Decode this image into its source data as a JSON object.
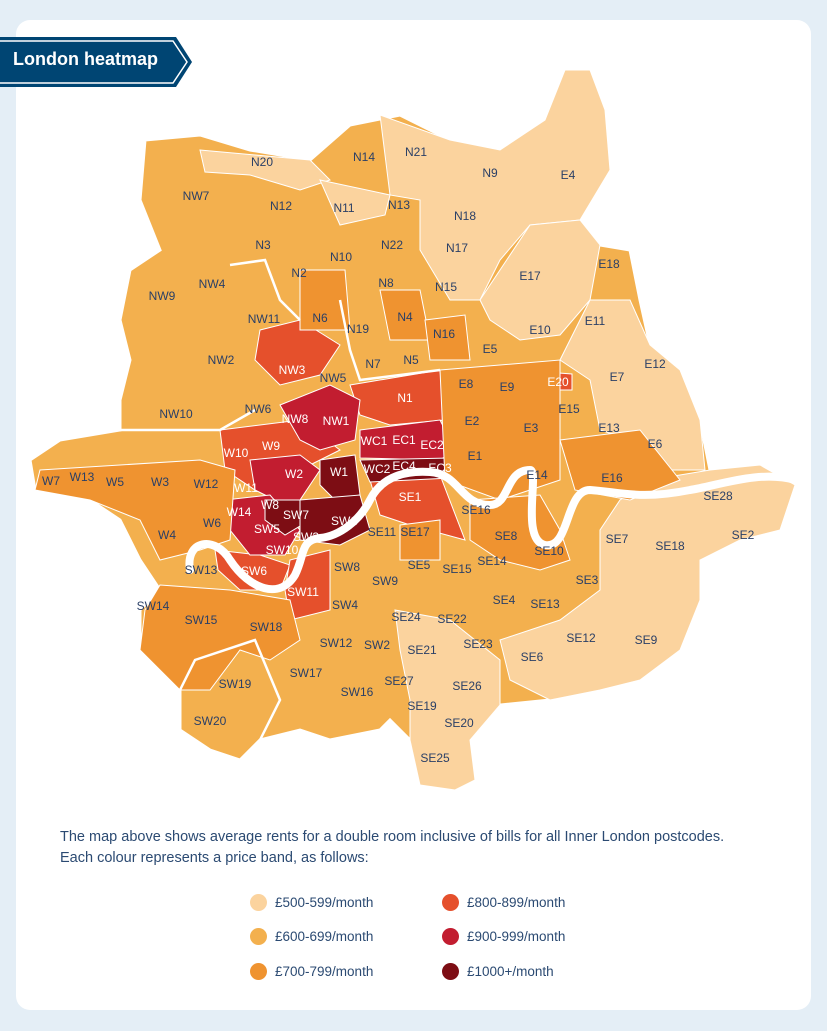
{
  "title": "London heatmap",
  "description": [
    "The map above shows average rents for a double room inclusive of bills for all Inner London postcodes.",
    "Each colour represents a price band, as follows:"
  ],
  "bands": [
    {
      "label": "£500-599/month",
      "color": "#fbd39e"
    },
    {
      "label": "£600-699/month",
      "color": "#f3b04e"
    },
    {
      "label": "£700-799/month",
      "color": "#ef9330"
    },
    {
      "label": "£800-899/month",
      "color": "#e5502c"
    },
    {
      "label": "£900-999/month",
      "color": "#c21d30"
    },
    {
      "label": "£1000+/month",
      "color": "#7d0d14"
    }
  ],
  "districts": [
    {
      "name": "N20",
      "band": 0
    },
    {
      "name": "N14",
      "band": 1
    },
    {
      "name": "N21",
      "band": 0
    },
    {
      "name": "N9",
      "band": 0
    },
    {
      "name": "E4",
      "band": 0
    },
    {
      "name": "NW7",
      "band": 1
    },
    {
      "name": "N12",
      "band": 1
    },
    {
      "name": "N11",
      "band": 0
    },
    {
      "name": "N13",
      "band": 0
    },
    {
      "name": "N18",
      "band": 0
    },
    {
      "name": "N3",
      "band": 1
    },
    {
      "name": "N22",
      "band": 1
    },
    {
      "name": "N17",
      "band": 0
    },
    {
      "name": "E17",
      "band": 0
    },
    {
      "name": "E18",
      "band": 1
    },
    {
      "name": "NW9",
      "band": 1
    },
    {
      "name": "NW4",
      "band": 1
    },
    {
      "name": "N2",
      "band": 1
    },
    {
      "name": "N10",
      "band": 1
    },
    {
      "name": "N8",
      "band": 1
    },
    {
      "name": "N15",
      "band": 1
    },
    {
      "name": "NW11",
      "band": 1
    },
    {
      "name": "N6",
      "band": 2
    },
    {
      "name": "N19",
      "band": 1
    },
    {
      "name": "N4",
      "band": 2
    },
    {
      "name": "N16",
      "band": 2
    },
    {
      "name": "E10",
      "band": 0
    },
    {
      "name": "E11",
      "band": 1
    },
    {
      "name": "NW2",
      "band": 1
    },
    {
      "name": "NW3",
      "band": 3
    },
    {
      "name": "N7",
      "band": 1
    },
    {
      "name": "N5",
      "band": 1
    },
    {
      "name": "E5",
      "band": 1
    },
    {
      "name": "E12",
      "band": 0
    },
    {
      "name": "NW5",
      "band": 1
    },
    {
      "name": "E20",
      "band": 3
    },
    {
      "name": "E7",
      "band": 0
    },
    {
      "name": "NW10",
      "band": 1
    },
    {
      "name": "NW6",
      "band": 2
    },
    {
      "name": "N1",
      "band": 3
    },
    {
      "name": "E8",
      "band": 2
    },
    {
      "name": "E9",
      "band": 2
    },
    {
      "name": "E15",
      "band": 1
    },
    {
      "name": "NW8",
      "band": 4
    },
    {
      "name": "NW1",
      "band": 4
    },
    {
      "name": "E2",
      "band": 2
    },
    {
      "name": "E3",
      "band": 1
    },
    {
      "name": "E13",
      "band": 0
    },
    {
      "name": "E6",
      "band": 0
    },
    {
      "name": "W9",
      "band": 3
    },
    {
      "name": "WC1",
      "band": 4
    },
    {
      "name": "EC1",
      "band": 4
    },
    {
      "name": "EC2",
      "band": 4
    },
    {
      "name": "W10",
      "band": 3
    },
    {
      "name": "E1",
      "band": 2
    },
    {
      "name": "W7",
      "band": 1
    },
    {
      "name": "W13",
      "band": 1
    },
    {
      "name": "W2",
      "band": 4
    },
    {
      "name": "W1",
      "band": 5
    },
    {
      "name": "WC2",
      "band": 5
    },
    {
      "name": "EC4",
      "band": 5
    },
    {
      "name": "EC3",
      "band": 5
    },
    {
      "name": "E14",
      "band": 2
    },
    {
      "name": "E16",
      "band": 2
    },
    {
      "name": "W5",
      "band": 2
    },
    {
      "name": "W3",
      "band": 2
    },
    {
      "name": "W12",
      "band": 2
    },
    {
      "name": "W11",
      "band": 4
    },
    {
      "name": "W8",
      "band": 5
    },
    {
      "name": "SE1",
      "band": 3
    },
    {
      "name": "SE16",
      "band": 2
    },
    {
      "name": "SE28",
      "band": 0
    },
    {
      "name": "W14",
      "band": 4
    },
    {
      "name": "SW7",
      "band": 5
    },
    {
      "name": "SW1",
      "band": 5
    },
    {
      "name": "SE2",
      "band": 0
    },
    {
      "name": "W4",
      "band": 2
    },
    {
      "name": "W6",
      "band": 2
    },
    {
      "name": "SW5",
      "band": 4
    },
    {
      "name": "SW3",
      "band": 5
    },
    {
      "name": "SE11",
      "band": 2
    },
    {
      "name": "SE17",
      "band": 2
    },
    {
      "name": "SE8",
      "band": 2
    },
    {
      "name": "SE7",
      "band": 0
    },
    {
      "name": "SE18",
      "band": 0
    },
    {
      "name": "SW10",
      "band": 4
    },
    {
      "name": "SE10",
      "band": 2
    },
    {
      "name": "SE14",
      "band": 1
    },
    {
      "name": "SE5",
      "band": 1
    },
    {
      "name": "SE15",
      "band": 1
    },
    {
      "name": "SW13",
      "band": 1
    },
    {
      "name": "SW6",
      "band": 3
    },
    {
      "name": "SW8",
      "band": 2
    },
    {
      "name": "SW9",
      "band": 1
    },
    {
      "name": "SE3",
      "band": 1
    },
    {
      "name": "SW14",
      "band": 1
    },
    {
      "name": "SW11",
      "band": 3
    },
    {
      "name": "SW4",
      "band": 1
    },
    {
      "name": "SE4",
      "band": 1
    },
    {
      "name": "SE13",
      "band": 1
    },
    {
      "name": "SE24",
      "band": 1
    },
    {
      "name": "SE22",
      "band": 1
    },
    {
      "name": "SW15",
      "band": 2
    },
    {
      "name": "SW18",
      "band": 2
    },
    {
      "name": "SE12",
      "band": 0
    },
    {
      "name": "SE9",
      "band": 0
    },
    {
      "name": "SW12",
      "band": 1
    },
    {
      "name": "SW2",
      "band": 1
    },
    {
      "name": "SE23",
      "band": 1
    },
    {
      "name": "SE21",
      "band": 0
    },
    {
      "name": "SE6",
      "band": 0
    },
    {
      "name": "SW19",
      "band": 1
    },
    {
      "name": "SW17",
      "band": 1
    },
    {
      "name": "SE27",
      "band": 1
    },
    {
      "name": "SE26",
      "band": 0
    },
    {
      "name": "SW16",
      "band": 1
    },
    {
      "name": "SE19",
      "band": 0
    },
    {
      "name": "SW20",
      "band": 1
    },
    {
      "name": "SE20",
      "band": 0
    },
    {
      "name": "SE25",
      "band": 0
    }
  ]
}
